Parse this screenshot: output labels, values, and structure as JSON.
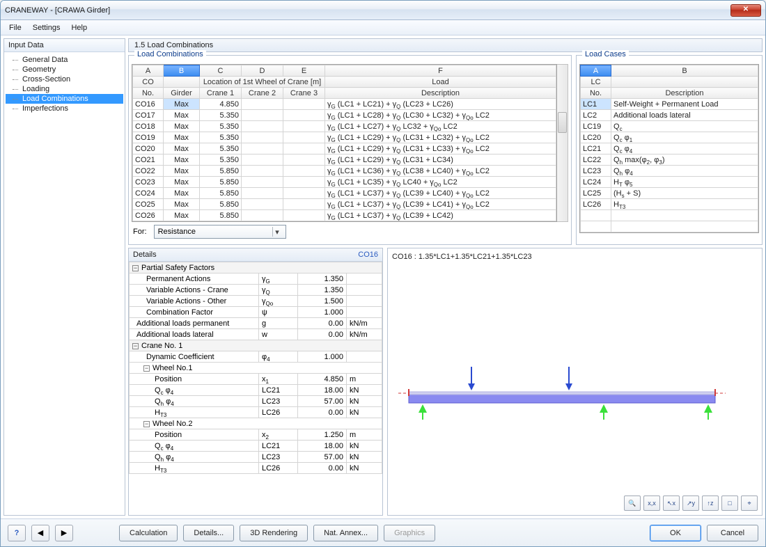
{
  "window": {
    "title": "CRANEWAY - [CRAWA Girder]"
  },
  "menu": {
    "file": "File",
    "settings": "Settings",
    "help": "Help"
  },
  "sidebar": {
    "header": "Input Data",
    "items": [
      "General Data",
      "Geometry",
      "Cross-Section",
      "Loading",
      "Load Combinations",
      "Imperfections"
    ],
    "selected_index": 4
  },
  "panel": {
    "title": "1.5 Load Combinations"
  },
  "loadcomb": {
    "label": "Load Combinations",
    "head_letters": [
      "A",
      "B",
      "C",
      "D",
      "E",
      "F"
    ],
    "head_group_co": "CO",
    "head_group_loc": "Location of 1st Wheel of Crane [m]",
    "head_group_load": "Load",
    "head_no": "No.",
    "head_girder": "Girder",
    "head_c1": "Crane 1",
    "head_c2": "Crane 2",
    "head_c3": "Crane 3",
    "head_desc": "Description",
    "rows": [
      {
        "no": "CO16",
        "g": "Max",
        "c1": "4.850",
        "desc": "γG (LC1 + LC21) + γQ (LC23 + LC26)"
      },
      {
        "no": "CO17",
        "g": "Max",
        "c1": "5.350",
        "desc": "γG (LC1 + LC28) + γQ (LC30 + LC32) + γQo LC2"
      },
      {
        "no": "CO18",
        "g": "Max",
        "c1": "5.350",
        "desc": "γG (LC1 + LC27) + γQ LC32 + γQo LC2"
      },
      {
        "no": "CO19",
        "g": "Max",
        "c1": "5.350",
        "desc": "γG (LC1 + LC29) + γQ (LC31 + LC32) + γQo LC2"
      },
      {
        "no": "CO20",
        "g": "Max",
        "c1": "5.350",
        "desc": "γG (LC1 + LC29) + γQ (LC31 + LC33) + γQo LC2"
      },
      {
        "no": "CO21",
        "g": "Max",
        "c1": "5.350",
        "desc": "γG (LC1 + LC29) + γQ (LC31 + LC34)"
      },
      {
        "no": "CO22",
        "g": "Max",
        "c1": "5.850",
        "desc": "γG (LC1 + LC36) + γQ (LC38 + LC40) + γQo LC2"
      },
      {
        "no": "CO23",
        "g": "Max",
        "c1": "5.850",
        "desc": "γG (LC1 + LC35) + γQ LC40 + γQo LC2"
      },
      {
        "no": "CO24",
        "g": "Max",
        "c1": "5.850",
        "desc": "γG (LC1 + LC37) + γQ (LC39 + LC40) + γQo LC2"
      },
      {
        "no": "CO25",
        "g": "Max",
        "c1": "5.850",
        "desc": "γG (LC1 + LC37) + γQ (LC39 + LC41) + γQo LC2"
      },
      {
        "no": "CO26",
        "g": "Max",
        "c1": "5.850",
        "desc": "γG (LC1 + LC37) + γQ (LC39 + LC42)"
      }
    ]
  },
  "for_label": "For:",
  "for_value": "Resistance",
  "loadcases": {
    "label": "Load Cases",
    "head_letters": [
      "A",
      "B"
    ],
    "head_lc": "LC",
    "head_no": "No.",
    "head_desc": "Description",
    "rows": [
      {
        "no": "LC1",
        "desc": "Self-Weight + Permanent Load"
      },
      {
        "no": "LC2",
        "desc": "Additional loads lateral"
      },
      {
        "no": "LC19",
        "desc": "Qc"
      },
      {
        "no": "LC20",
        "desc": "Qc φ1"
      },
      {
        "no": "LC21",
        "desc": "Qc φ4"
      },
      {
        "no": "LC22",
        "desc": "Qh max(φ2, φ3)"
      },
      {
        "no": "LC23",
        "desc": "Qh φ4"
      },
      {
        "no": "LC24",
        "desc": "HT φ5"
      },
      {
        "no": "LC25",
        "desc": "(Hs + S)"
      },
      {
        "no": "LC26",
        "desc": "HT3"
      }
    ]
  },
  "details": {
    "title": "Details",
    "co": "CO16",
    "groups": [
      {
        "type": "group",
        "label": "Partial Safety Factors"
      },
      {
        "type": "row",
        "label": "Permanent Actions",
        "sym": "γG",
        "val": "1.350",
        "unit": ""
      },
      {
        "type": "row",
        "label": "Variable Actions - Crane",
        "sym": "γQ",
        "val": "1.350",
        "unit": ""
      },
      {
        "type": "row",
        "label": "Variable Actions - Other",
        "sym": "γQo",
        "val": "1.500",
        "unit": ""
      },
      {
        "type": "row",
        "label": "Combination Factor",
        "sym": "ψ",
        "val": "1.000",
        "unit": ""
      },
      {
        "type": "row",
        "label": "Additional loads permanent",
        "sym": "g",
        "val": "0.00",
        "unit": "kN/m",
        "top": true
      },
      {
        "type": "row",
        "label": "Additional loads lateral",
        "sym": "w",
        "val": "0.00",
        "unit": "kN/m",
        "top": true
      },
      {
        "type": "group",
        "label": "Crane No. 1"
      },
      {
        "type": "row",
        "label": "Dynamic Coefficient",
        "sym": "φ4",
        "val": "1.000",
        "unit": ""
      },
      {
        "type": "subgroup",
        "label": "Wheel No.1"
      },
      {
        "type": "row",
        "label": "Position",
        "sym": "x1",
        "val": "4.850",
        "unit": "m",
        "indent": 2
      },
      {
        "type": "row",
        "label": "Qc φ4",
        "sym": "LC21",
        "val": "18.00",
        "unit": "kN",
        "indent": 2
      },
      {
        "type": "row",
        "label": "Qh φ4",
        "sym": "LC23",
        "val": "57.00",
        "unit": "kN",
        "indent": 2
      },
      {
        "type": "row",
        "label": "HT3",
        "sym": "LC26",
        "val": "0.00",
        "unit": "kN",
        "indent": 2
      },
      {
        "type": "subgroup",
        "label": "Wheel No.2"
      },
      {
        "type": "row",
        "label": "Position",
        "sym": "x2",
        "val": "1.250",
        "unit": "m",
        "indent": 2
      },
      {
        "type": "row",
        "label": "Qc φ4",
        "sym": "LC21",
        "val": "18.00",
        "unit": "kN",
        "indent": 2
      },
      {
        "type": "row",
        "label": "Qh φ4",
        "sym": "LC23",
        "val": "57.00",
        "unit": "kN",
        "indent": 2
      },
      {
        "type": "row",
        "label": "HT3",
        "sym": "LC26",
        "val": "0.00",
        "unit": "kN",
        "indent": 2
      }
    ]
  },
  "diagram": {
    "title": "CO16 : 1.35*LC1+1.35*LC21+1.35*LC23",
    "beam_color": "#8a8af0",
    "beam_shadow": "#6a6ae0",
    "support_color": "#3ae03a",
    "load_color": "#2a4ad0",
    "dash_color": "#d03a3a",
    "toolbar": [
      "🔍",
      "x,x",
      "↖x",
      "↗y",
      "↑z",
      "□",
      "⌖"
    ]
  },
  "footer": {
    "help_icon": "?",
    "calculation": "Calculation",
    "details": "Details...",
    "rendering": "3D Rendering",
    "annex": "Nat. Annex...",
    "graphics": "Graphics",
    "ok": "OK",
    "cancel": "Cancel"
  }
}
